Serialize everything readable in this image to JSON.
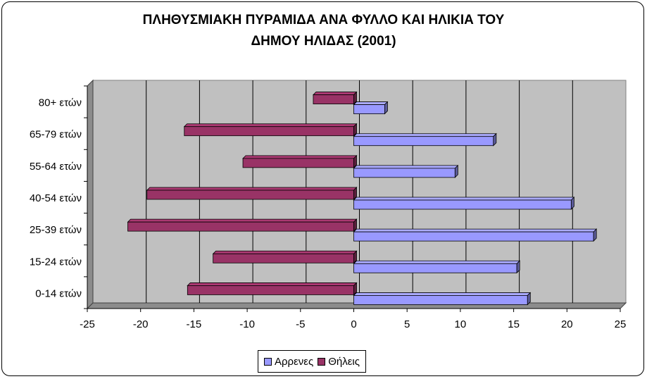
{
  "chart_data": {
    "type": "bar",
    "orientation": "horizontal",
    "title_lines": [
      "ΠΛΗΘΥΣΜΙΑΚΗ ΠΥΡΑΜΙΔΑ ΑΝΑ ΦΥΛΛΟ ΚΑΙ ΗΛΙΚΙΑ ΤΟΥ",
      "ΔΗΜΟΥ ΗΛΙΔΑΣ (2001)"
    ],
    "categories": [
      "0-14 ετών",
      "15-24 ετών",
      "25-39 ετών",
      "40-54 ετών",
      "55-64 ετών",
      "65-79 ετών",
      "80+ ετών"
    ],
    "series": [
      {
        "name": "Αρρενες",
        "color": "#9999FF",
        "values": [
          16.3,
          15.3,
          22.5,
          20.4,
          9.5,
          13.1,
          2.9
        ]
      },
      {
        "name": "Θήλεις",
        "color": "#993366",
        "values": [
          -15.6,
          -13.2,
          -21.2,
          -19.4,
          -10.4,
          -15.9,
          -3.8
        ]
      }
    ],
    "xlim": [
      -25,
      25
    ],
    "xticks": [
      -25,
      -20,
      -15,
      -10,
      -5,
      0,
      5,
      10,
      15,
      20,
      25
    ],
    "grid": true,
    "legend_position": "bottom",
    "plot_background": "#C0C0C0"
  }
}
